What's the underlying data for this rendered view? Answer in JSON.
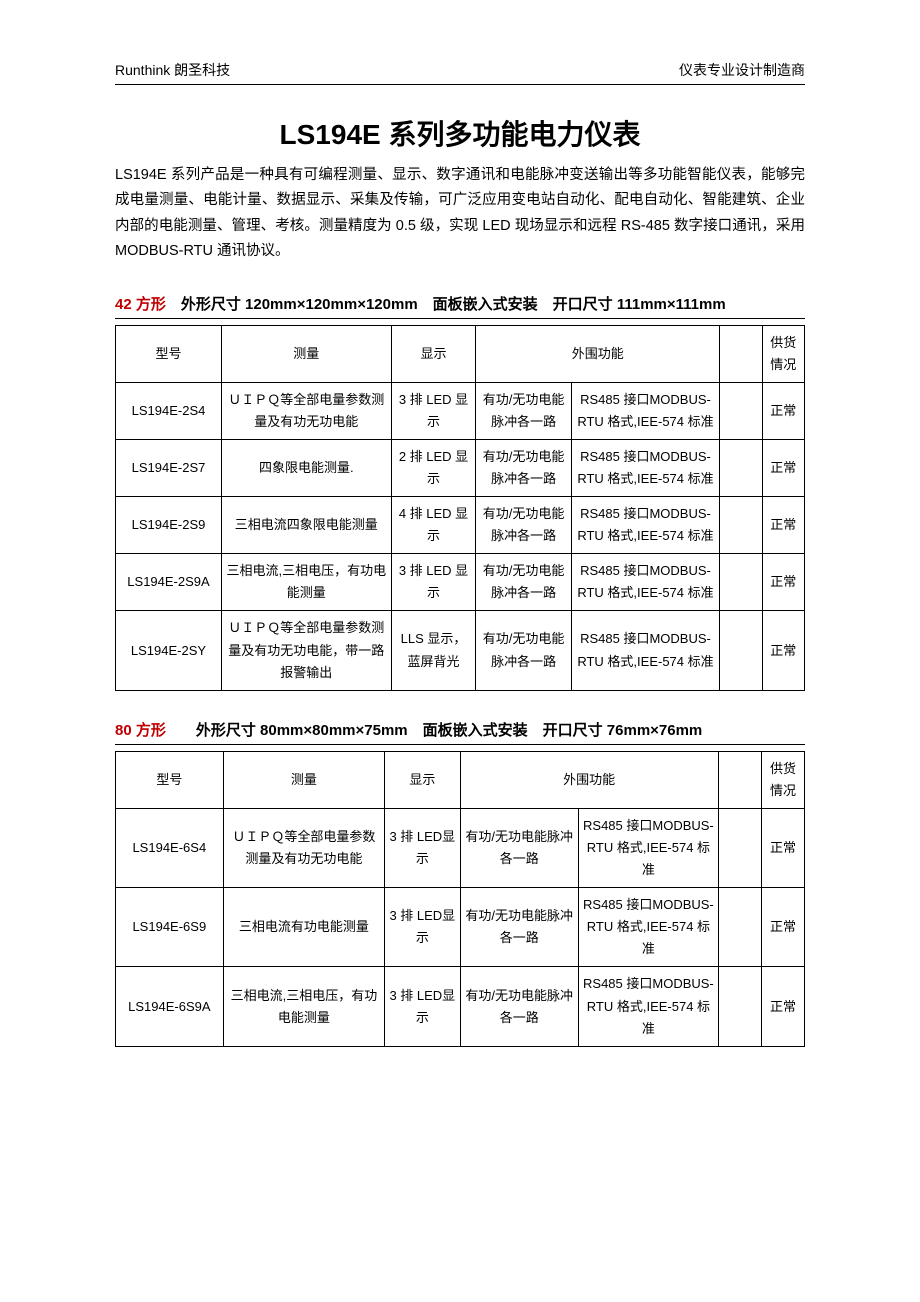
{
  "header": {
    "left": "Runthink  朗圣科技",
    "right": "仪表专业设计制造商"
  },
  "title": "LS194E 系列多功能电力仪表",
  "intro": "LS194E 系列产品是一种具有可编程测量、显示、数字通讯和电能脉冲变送输出等多功能智能仪表，能够完成电量测量、电能计量、数据显示、采集及传输，可广泛应用变电站自动化、配电自动化、智能建筑、企业内部的电能测量、管理、考核。测量精度为 0.5 级，实现 LED 现场显示和远程 RS-485 数字接口通讯，采用 MODBUS-RTU 通讯协议。",
  "sections": [
    {
      "heading_red": "42 方形",
      "heading_black": "　外形尺寸 120mm×120mm×120mm　面板嵌入式安装　开口尺寸 111mm×111mm",
      "columns": {
        "model": "型号",
        "measure": "测量",
        "display": "显示",
        "peripheral": "外围功能",
        "status": "供货情况"
      },
      "rows": [
        {
          "model": "LS194E-2S4",
          "measure": "ＵＩＰＱ等全部电量参数测量及有功无功电能",
          "display": "3 排 LED 显示",
          "peri1": "有功/无功电能脉冲各一路",
          "peri2": "RS485 接口MODBUS-RTU 格式,IEE-574 标准",
          "empty": "",
          "status": "正常"
        },
        {
          "model": "LS194E-2S7",
          "measure": "四象限电能测量.",
          "display": "2 排 LED 显示",
          "peri1": "有功/无功电能脉冲各一路",
          "peri2": "RS485 接口MODBUS-RTU 格式,IEE-574 标准",
          "empty": "",
          "status": "正常"
        },
        {
          "model": "LS194E-2S9",
          "measure": "三相电流四象限电能测量",
          "display": "4 排 LED 显示",
          "peri1": "有功/无功电能脉冲各一路",
          "peri2": "RS485 接口MODBUS-RTU 格式,IEE-574 标准",
          "empty": "",
          "status": "正常"
        },
        {
          "model": "LS194E-2S9A",
          "measure": "三相电流,三相电压，有功电能测量",
          "display": "3 排 LED 显示",
          "peri1": "有功/无功电能脉冲各一路",
          "peri2": "RS485 接口MODBUS-RTU 格式,IEE-574 标准",
          "empty": "",
          "status": "正常"
        },
        {
          "model": "LS194E-2SY",
          "measure": "ＵＩＰＱ等全部电量参数测量及有功无功电能，带一路报警输出",
          "display": "LLS 显示，蓝屏背光",
          "peri1": "有功/无功电能脉冲各一路",
          "peri2": "RS485 接口MODBUS-RTU 格式,IEE-574 标准",
          "empty": "",
          "status": "正常"
        }
      ]
    },
    {
      "heading_red": "80 方形",
      "heading_black": "　　外形尺寸 80mm×80mm×75mm　面板嵌入式安装　开口尺寸 76mm×76mm",
      "columns": {
        "model": "型号",
        "measure": "测量",
        "display": "显示",
        "peripheral": "外围功能",
        "status": "供货情况"
      },
      "rows": [
        {
          "model": "LS194E-6S4",
          "measure": "ＵＩＰＱ等全部电量参数测量及有功无功电能",
          "display": "3 排 LED显示",
          "peri1": "有功/无功电能脉冲各一路",
          "peri2": "RS485 接口MODBUS-RTU 格式,IEE-574 标准",
          "empty": "",
          "status": "正常"
        },
        {
          "model": "LS194E-6S9",
          "measure": "三相电流有功电能测量",
          "display": "3 排 LED显示",
          "peri1": "有功/无功电能脉冲各一路",
          "peri2": "RS485 接口MODBUS-RTU 格式,IEE-574 标准",
          "empty": "",
          "status": "正常"
        },
        {
          "model": "LS194E-6S9A",
          "measure": "三相电流,三相电压，有功电能测量",
          "display": "3 排 LED显示",
          "peri1": "有功/无功电能脉冲各一路",
          "peri2": "RS485 接口MODBUS-RTU 格式,IEE-574 标准",
          "empty": "",
          "status": "正常"
        }
      ]
    }
  ]
}
